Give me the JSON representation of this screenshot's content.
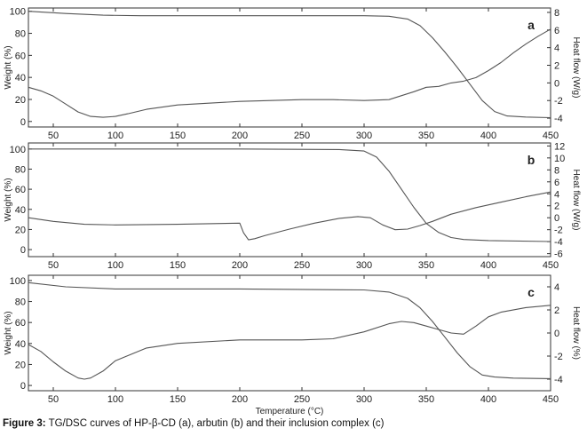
{
  "caption": {
    "label": "Figure 3:",
    "text": "TG/DSC curves of HP-β-CD (a), arbutin (b) and their inclusion complex (c)"
  },
  "chart_data": [
    {
      "type": "line",
      "panel_label": "a",
      "xlabel": "",
      "ylabel_left": "Weight (%)",
      "ylabel_right": "Heat flow (W/g)",
      "xlim": [
        30,
        450
      ],
      "ylim_left": [
        -5,
        103
      ],
      "ylim_right": [
        -5,
        8.5
      ],
      "x_ticks": [
        50,
        100,
        150,
        200,
        250,
        300,
        350,
        400,
        450
      ],
      "y_ticks_left": [
        0,
        20,
        40,
        60,
        80,
        100
      ],
      "y_ticks_right": [
        -4,
        -2,
        0,
        2,
        4,
        6,
        8
      ],
      "series": [
        {
          "axis": "left",
          "x": [
            30,
            60,
            90,
            120,
            150,
            200,
            250,
            300,
            320,
            335,
            345,
            355,
            365,
            375,
            385,
            395,
            405,
            415,
            430,
            450
          ],
          "y": [
            100,
            98,
            96.5,
            96,
            96,
            96,
            96,
            96,
            95.5,
            93,
            87,
            76,
            63,
            49,
            34,
            19,
            9,
            5,
            4,
            3.5
          ]
        },
        {
          "axis": "right",
          "x": [
            30,
            40,
            50,
            60,
            70,
            80,
            90,
            100,
            110,
            125,
            150,
            175,
            200,
            225,
            250,
            275,
            300,
            320,
            340,
            350,
            360,
            370,
            380,
            390,
            400,
            410,
            420,
            430,
            440,
            450
          ],
          "y": [
            -0.5,
            -0.9,
            -1.5,
            -2.4,
            -3.3,
            -3.8,
            -3.9,
            -3.8,
            -3.5,
            -3.0,
            -2.5,
            -2.3,
            -2.1,
            -2.0,
            -1.9,
            -1.9,
            -2.0,
            -1.9,
            -1.0,
            -0.5,
            -0.4,
            0.0,
            0.2,
            0.6,
            1.4,
            2.3,
            3.4,
            4.4,
            5.3,
            6.1
          ]
        }
      ]
    },
    {
      "type": "line",
      "panel_label": "b",
      "xlabel": "",
      "ylabel_left": "Weight (%)",
      "ylabel_right": "Heat flow (W/g)",
      "xlim": [
        30,
        450
      ],
      "ylim_left": [
        -7,
        106
      ],
      "ylim_right": [
        -6.5,
        12.5
      ],
      "x_ticks": [
        50,
        100,
        150,
        200,
        250,
        300,
        350,
        400,
        450
      ],
      "y_ticks_left": [
        0,
        20,
        40,
        60,
        80,
        100
      ],
      "y_ticks_right": [
        -6,
        -4,
        -2,
        0,
        2,
        4,
        6,
        8,
        10,
        12
      ],
      "series": [
        {
          "axis": "left",
          "x": [
            30,
            100,
            200,
            280,
            300,
            310,
            320,
            330,
            340,
            350,
            360,
            370,
            380,
            400,
            450
          ],
          "y": [
            100,
            100,
            100,
            99.5,
            98,
            92,
            78,
            60,
            42,
            26,
            17,
            12,
            10,
            9,
            8
          ]
        },
        {
          "axis": "right",
          "x": [
            30,
            50,
            75,
            100,
            150,
            200,
            203,
            207,
            212,
            220,
            240,
            260,
            280,
            295,
            305,
            315,
            325,
            335,
            345,
            355,
            370,
            390,
            410,
            430,
            450
          ],
          "y": [
            0.0,
            -0.6,
            -1.1,
            -1.2,
            -1.1,
            -0.9,
            -2.5,
            -3.7,
            -3.5,
            -3.0,
            -1.9,
            -0.9,
            -0.1,
            0.2,
            0.0,
            -1.2,
            -2.0,
            -1.9,
            -1.3,
            -0.6,
            0.6,
            1.7,
            2.6,
            3.5,
            4.3
          ]
        }
      ]
    },
    {
      "type": "line",
      "panel_label": "c",
      "xlabel": "Temperature (°C)",
      "ylabel_left": "Weight (%)",
      "ylabel_right": "Heat flow (%)",
      "xlim": [
        30,
        450
      ],
      "ylim_left": [
        -5,
        105
      ],
      "ylim_right": [
        -5,
        5
      ],
      "x_ticks": [
        50,
        100,
        150,
        200,
        250,
        300,
        350,
        400,
        450
      ],
      "y_ticks_left": [
        0,
        20,
        40,
        60,
        80,
        100
      ],
      "y_ticks_right": [
        -4,
        -2,
        0,
        2,
        4
      ],
      "series": [
        {
          "axis": "left",
          "x": [
            30,
            60,
            100,
            200,
            300,
            320,
            335,
            345,
            355,
            365,
            375,
            385,
            395,
            405,
            420,
            450
          ],
          "y": [
            98,
            94,
            92,
            92,
            91,
            89,
            83,
            74,
            61,
            46,
            31,
            18,
            10,
            8,
            7,
            6.5
          ]
        },
        {
          "axis": "right",
          "x": [
            30,
            40,
            50,
            60,
            70,
            75,
            80,
            90,
            100,
            125,
            150,
            200,
            250,
            275,
            300,
            320,
            330,
            340,
            350,
            360,
            370,
            380,
            390,
            400,
            410,
            430,
            450
          ],
          "y": [
            -1.0,
            -1.6,
            -2.5,
            -3.3,
            -3.9,
            -4.0,
            -3.9,
            -3.3,
            -2.4,
            -1.3,
            -0.9,
            -0.6,
            -0.6,
            -0.5,
            0.1,
            0.8,
            1.0,
            0.9,
            0.6,
            0.3,
            0.0,
            -0.1,
            0.6,
            1.4,
            1.8,
            2.2,
            2.4
          ]
        }
      ]
    }
  ]
}
